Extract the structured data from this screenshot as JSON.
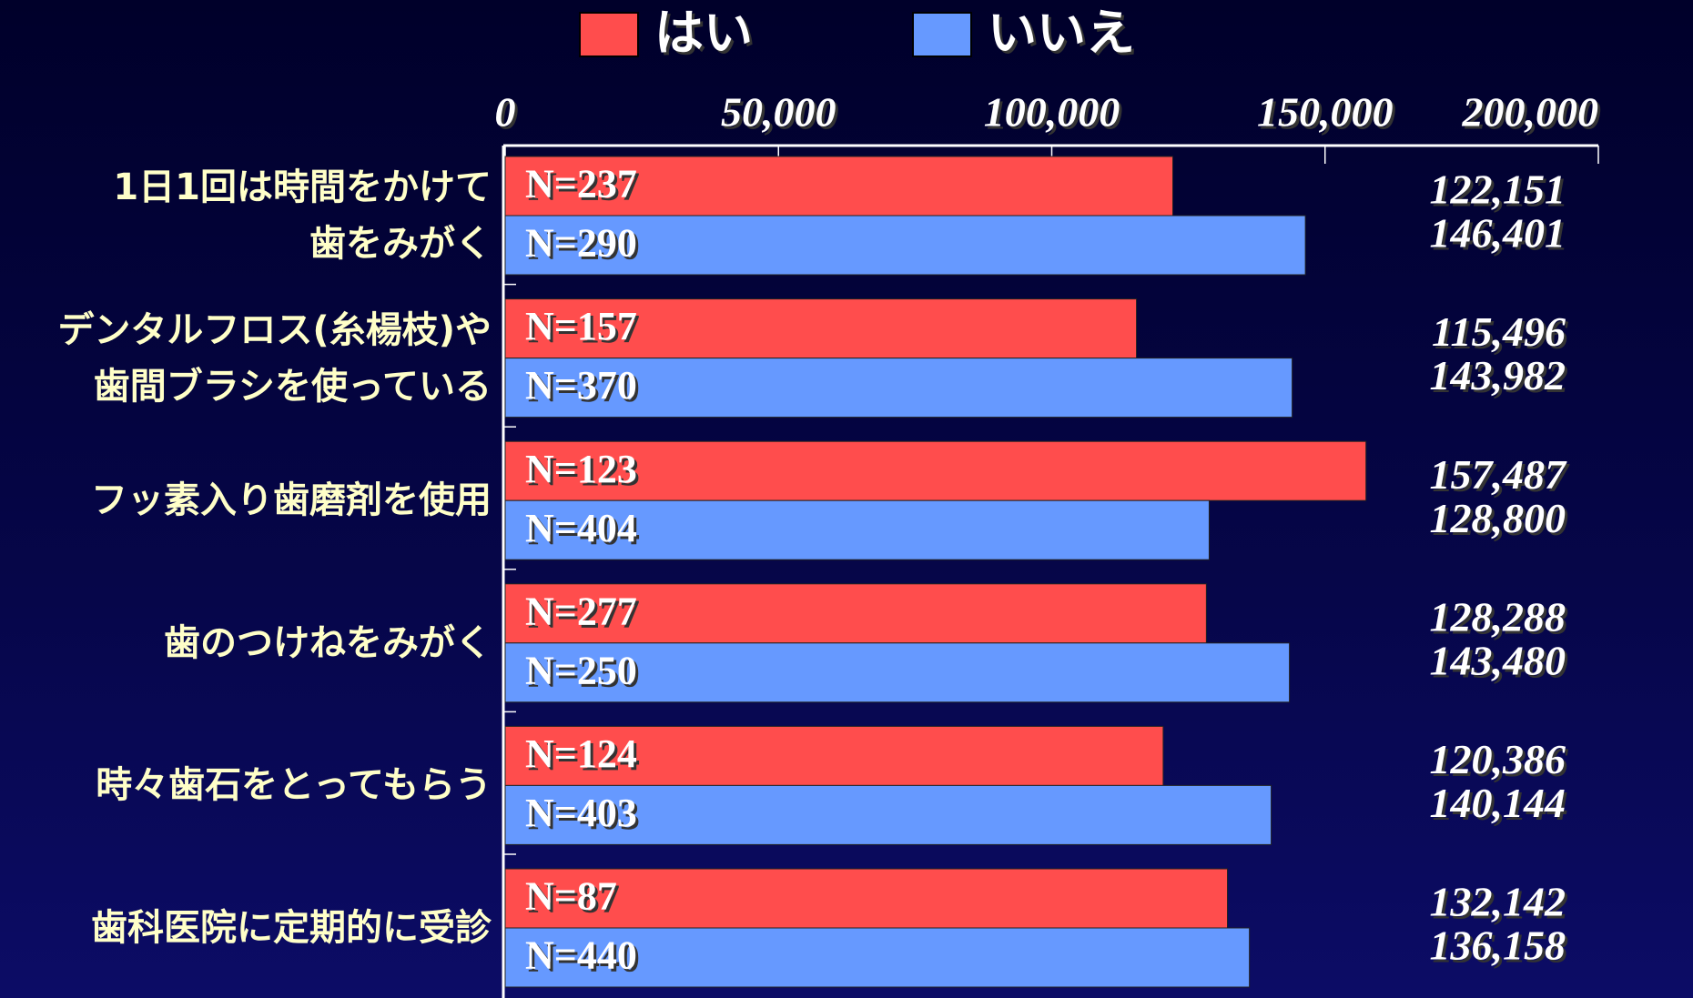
{
  "chart_data": {
    "type": "barh",
    "categories": [
      "1日1回は時間をかけて\n歯をみがく",
      "デンタルフロス(糸楊枝)や\n歯間ブラシを使っている",
      "フッ素入り歯磨剤を使用",
      "歯のつけねをみがく",
      "時々歯石をとってもらう",
      "歯科医院に定期的に受診"
    ],
    "series": [
      {
        "name": "はい",
        "color": "#ff4d4d",
        "values": [
          122151,
          115496,
          157487,
          128288,
          120386,
          132142
        ],
        "value_labels": [
          "122,151",
          "115,496",
          "157,487",
          "128,288",
          "120,386",
          "132,142"
        ],
        "n_labels": [
          "N=237",
          "N=157",
          "N=123",
          "N=277",
          "N=124",
          "N=87"
        ]
      },
      {
        "name": "いいえ",
        "color": "#6699ff",
        "values": [
          146401,
          143982,
          128800,
          143480,
          140144,
          136158
        ],
        "value_labels": [
          "146,401",
          "143,982",
          "128,800",
          "143,480",
          "140,144",
          "136,158"
        ],
        "n_labels": [
          "N=290",
          "N=370",
          "N=404",
          "N=250",
          "N=403",
          "N=440"
        ]
      }
    ],
    "xlim": [
      0,
      200000
    ],
    "xticks": [
      0,
      {
        "value": 50000,
        "label": "50,000"
      },
      {
        "value": 100000,
        "label": "100,000"
      },
      {
        "value": 150000,
        "label": "150,000"
      },
      {
        "value": 200000,
        "label": "200,000"
      }
    ],
    "legend": "top"
  }
}
